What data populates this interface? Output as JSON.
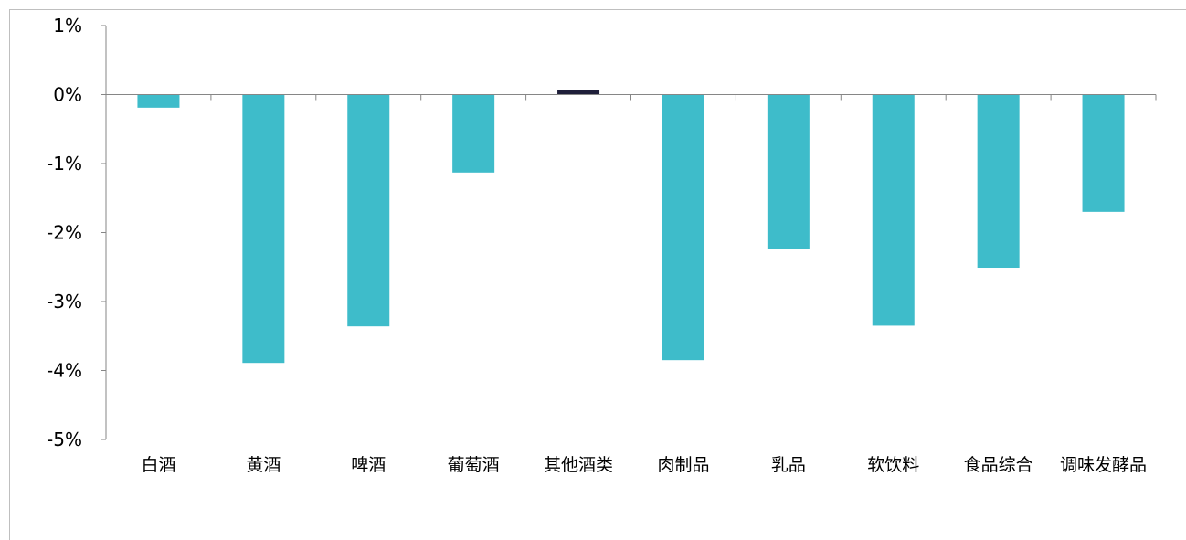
{
  "chart_data": {
    "type": "bar",
    "title": "",
    "xlabel": "",
    "ylabel": "",
    "ylim": [
      -5,
      1
    ],
    "yticks": [
      1,
      0,
      -1,
      -2,
      -3,
      -4,
      -5
    ],
    "ytick_labels": [
      "1%",
      "0%",
      "-1%",
      "-2%",
      "-3%",
      "-4%",
      "-5%"
    ],
    "categories": [
      "白酒",
      "黄酒",
      "啤酒",
      "葡萄酒",
      "其他酒类",
      "肉制品",
      "乳品",
      "软饮料",
      "食品综合",
      "调味发酵品"
    ],
    "values": [
      -0.19,
      -3.89,
      -3.36,
      -1.13,
      0.07,
      -3.85,
      -2.24,
      -3.35,
      -2.51,
      -1.7
    ],
    "colors": {
      "negative": "#3ebcca",
      "positive": "#1f1f3a",
      "axis": "#868686",
      "frame": "#bfbfbf"
    },
    "grid": false,
    "legend": "none"
  }
}
